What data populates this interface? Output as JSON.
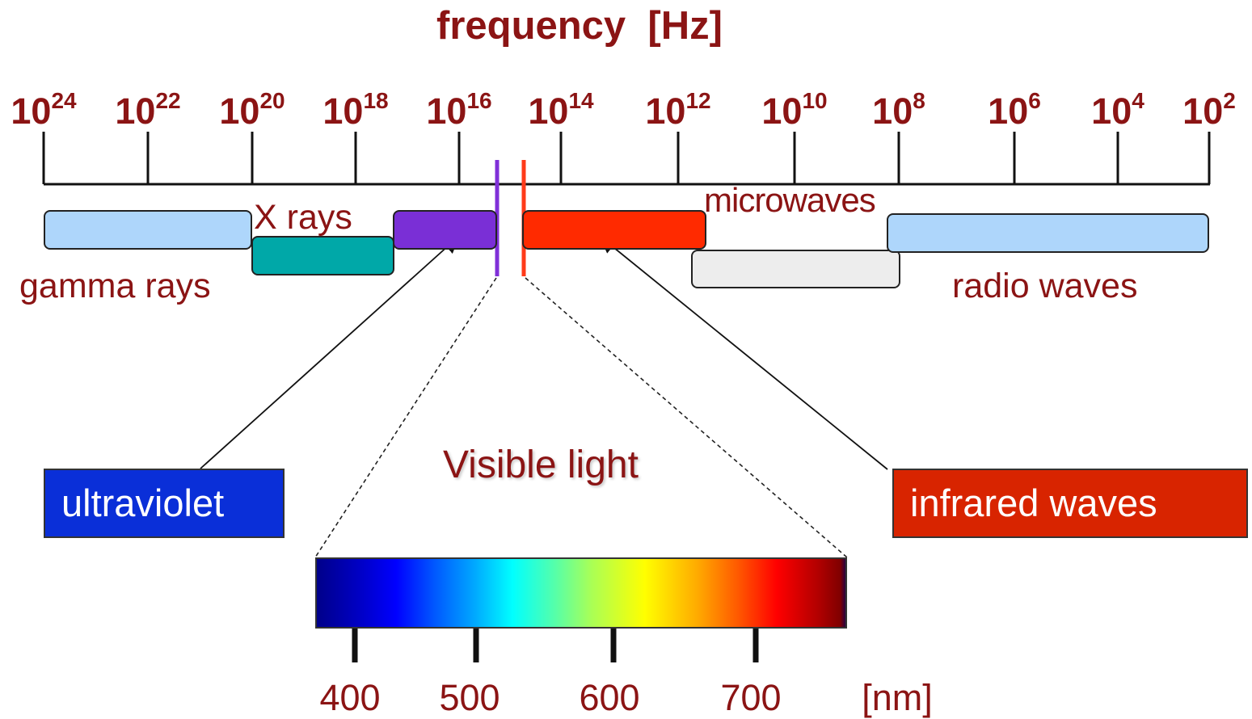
{
  "title": "frequency  [Hz]",
  "frequency_ticks": [
    {
      "base": "10",
      "exp": "24"
    },
    {
      "base": "10",
      "exp": "22"
    },
    {
      "base": "10",
      "exp": "20"
    },
    {
      "base": "10",
      "exp": "18"
    },
    {
      "base": "10",
      "exp": "16"
    },
    {
      "base": "10",
      "exp": "14"
    },
    {
      "base": "10",
      "exp": "12"
    },
    {
      "base": "10",
      "exp": "10"
    },
    {
      "base": "10",
      "exp": "8"
    },
    {
      "base": "10",
      "exp": "6"
    },
    {
      "base": "10",
      "exp": "4"
    },
    {
      "base": "10",
      "exp": "2"
    }
  ],
  "bands": {
    "gamma": {
      "label": "gamma rays",
      "color": "#aed6fb"
    },
    "xray": {
      "label": "X rays",
      "color": "#00a8a8"
    },
    "uv": {
      "color": "#7a2fd6"
    },
    "ir": {
      "color": "#ff2a00"
    },
    "microwave": {
      "label": "microwaves",
      "color": "#ededed"
    },
    "radio": {
      "label": "radio waves",
      "color": "#aed6fb"
    }
  },
  "callouts": {
    "ultraviolet": {
      "label": "ultraviolet",
      "color": "#0a2fd8"
    },
    "infrared": {
      "label": "infrared waves",
      "color": "#d82400"
    }
  },
  "visible": {
    "title": "Visible light",
    "ticks": [
      "400",
      "500",
      "600",
      "700"
    ],
    "unit": "[nm]"
  }
}
